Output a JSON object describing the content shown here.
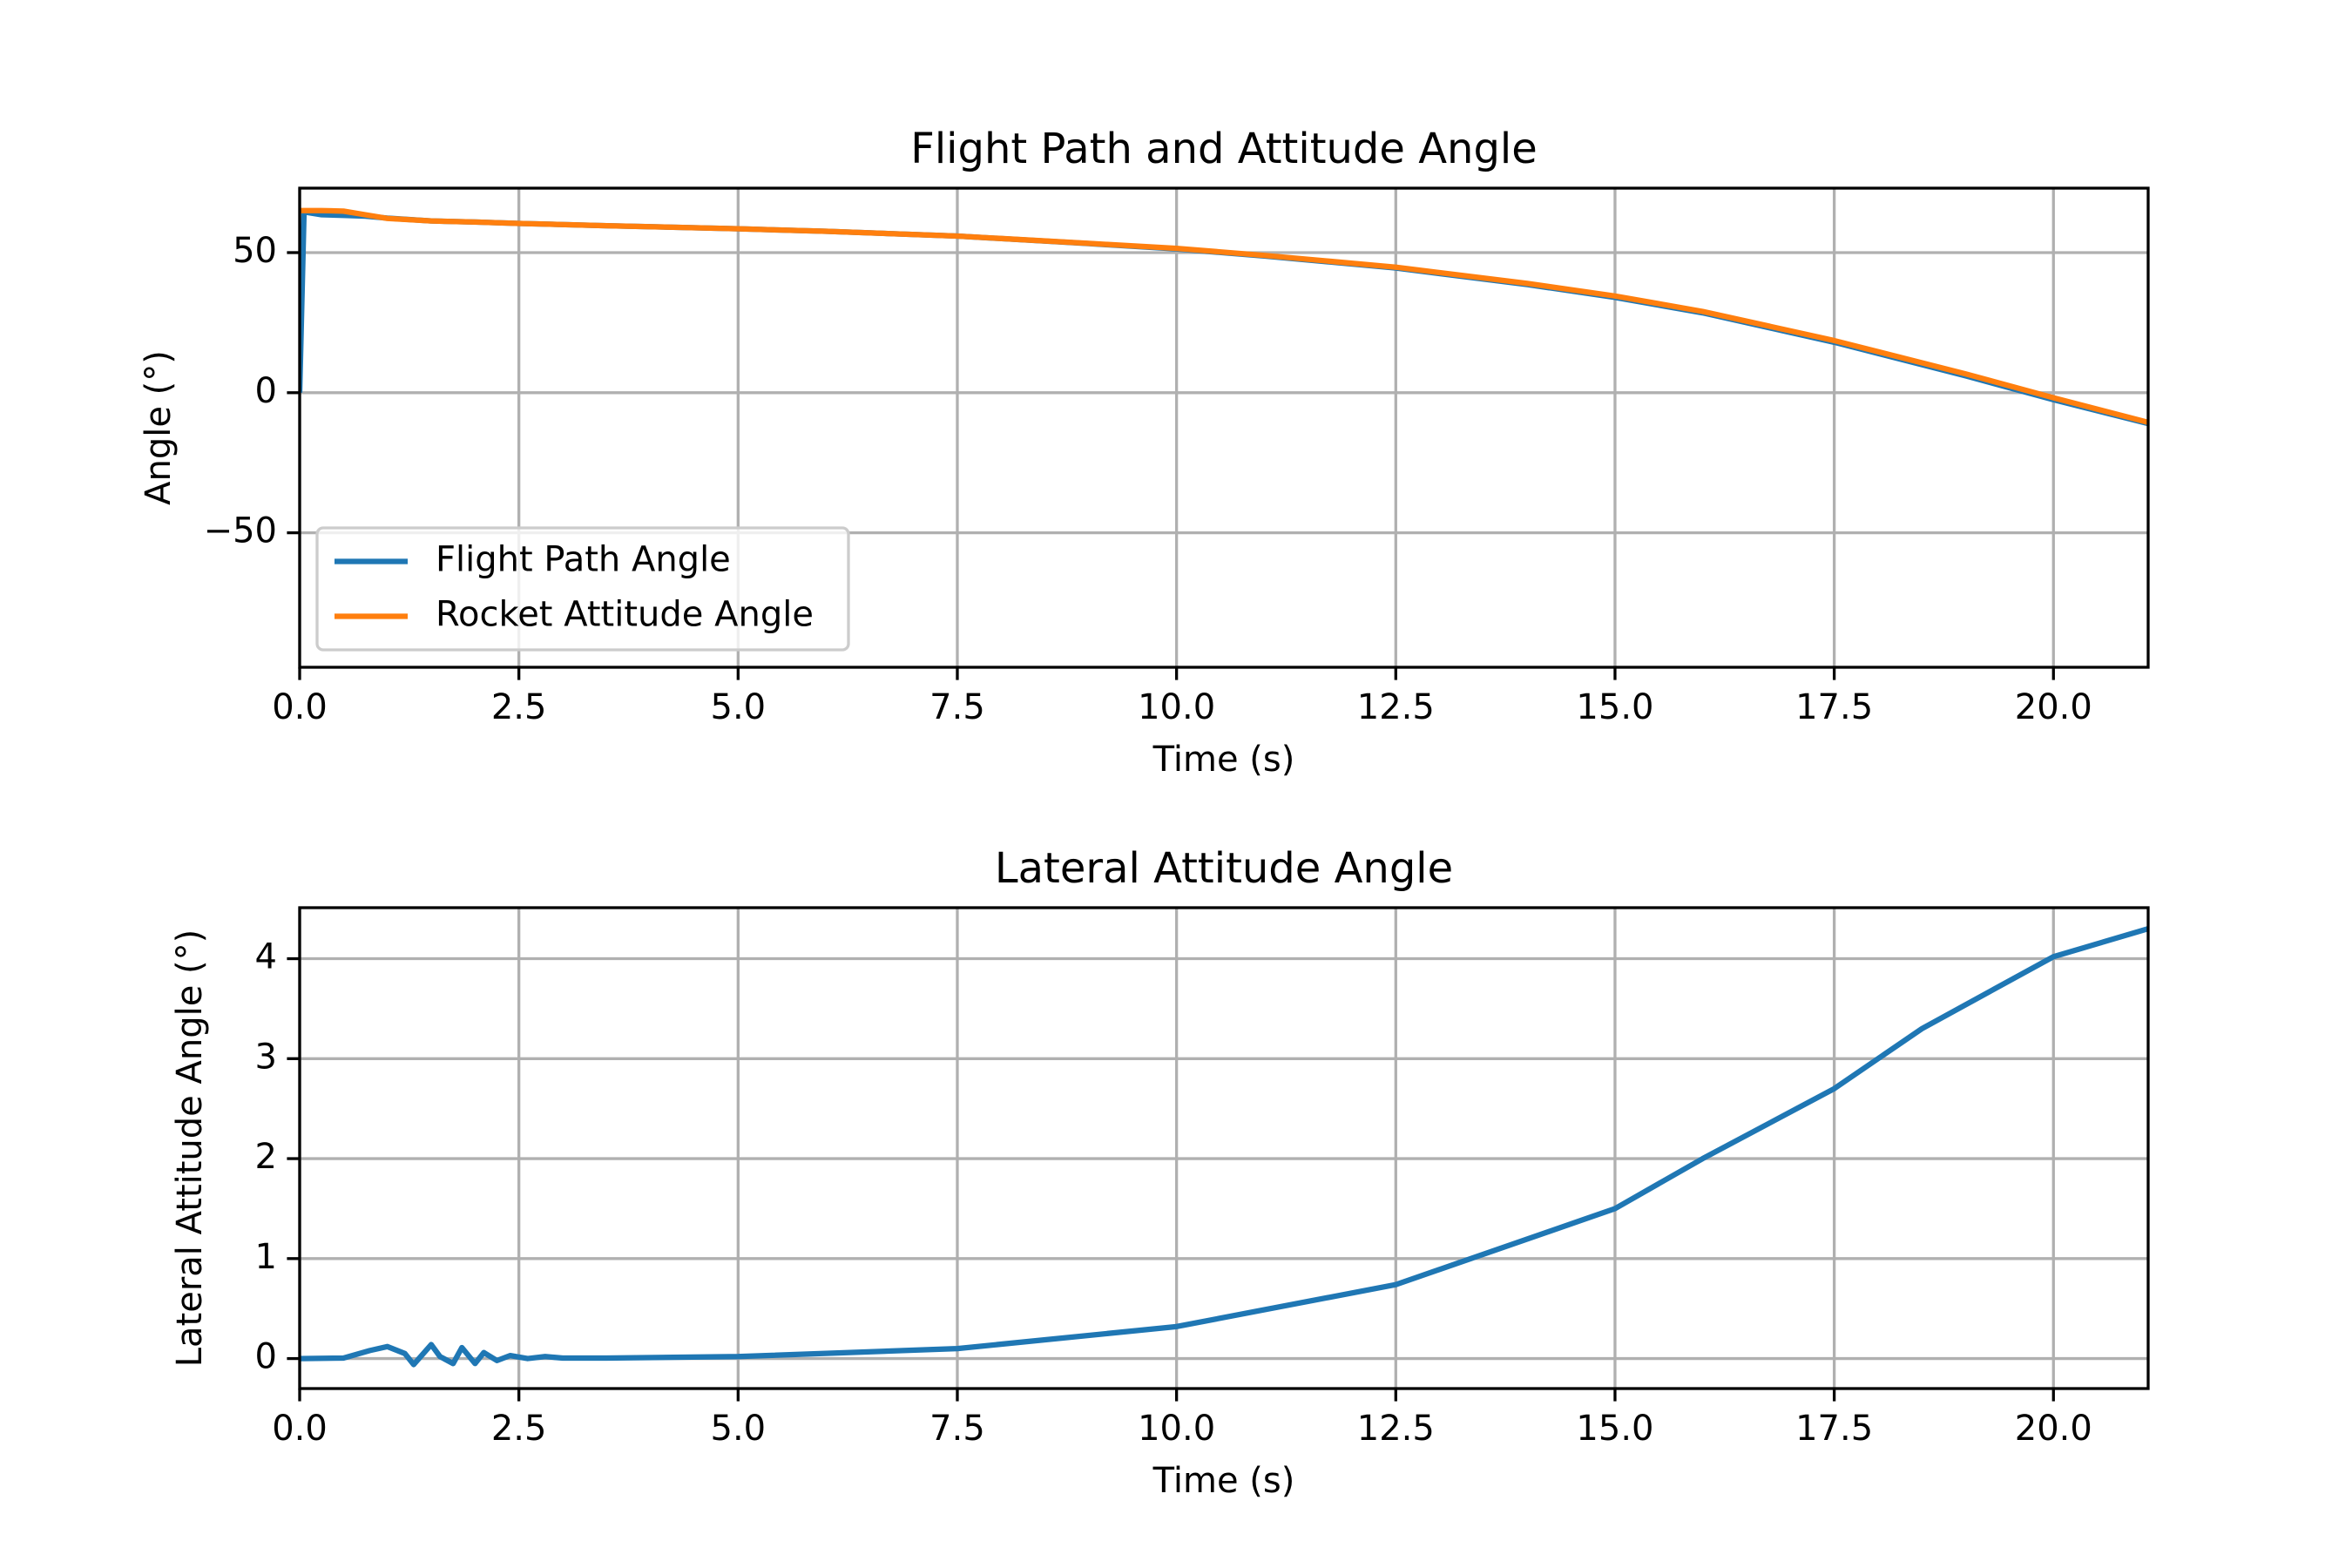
{
  "chart_data": [
    {
      "type": "line",
      "title": "Flight Path and Attitude Angle",
      "xlabel": "Time (s)",
      "ylabel": "Angle (°)",
      "x": [
        0,
        0.05,
        0.25,
        0.5,
        0.75,
        1,
        1.5,
        2,
        2.5,
        3.5,
        5,
        6,
        7.5,
        9,
        10,
        11,
        12.5,
        14,
        15,
        16,
        17.5,
        19,
        20,
        21.08
      ],
      "series": [
        {
          "name": "Flight Path Angle",
          "color": "#1f77b4",
          "values": [
            0,
            64.5,
            63.5,
            63.3,
            63,
            62.3,
            61.3,
            60.9,
            60.4,
            59.6,
            58.5,
            57.6,
            55.9,
            53.2,
            51.3,
            48.8,
            44.5,
            38.6,
            34,
            28.5,
            18,
            6,
            -2.5,
            -11
          ]
        },
        {
          "name": "Rocket Attitude Angle",
          "color": "#ff7f0e",
          "values": [
            65,
            65,
            65,
            64.8,
            63.5,
            62.2,
            61.3,
            60.9,
            60.4,
            59.6,
            58.5,
            57.6,
            55.9,
            53.3,
            51.5,
            49,
            44.8,
            39,
            34.5,
            29,
            18.6,
            6.7,
            -1.8,
            -10.6
          ]
        }
      ],
      "xlim": [
        0,
        21.08
      ],
      "ylim": [
        -98,
        73
      ],
      "xticks": [
        {
          "value": 0,
          "label": "0.0"
        },
        {
          "value": 2.5,
          "label": "2.5"
        },
        {
          "value": 5,
          "label": "5.0"
        },
        {
          "value": 7.5,
          "label": "7.5"
        },
        {
          "value": 10,
          "label": "10.0"
        },
        {
          "value": 12.5,
          "label": "12.5"
        },
        {
          "value": 15,
          "label": "15.0"
        },
        {
          "value": 17.5,
          "label": "17.5"
        },
        {
          "value": 20,
          "label": "20.0"
        }
      ],
      "yticks": [
        {
          "value": -50,
          "label": "−50"
        },
        0,
        50
      ],
      "grid": true,
      "legend": "lower left"
    },
    {
      "type": "line",
      "title": "Lateral Attitude Angle",
      "xlabel": "Time (s)",
      "ylabel": "Lateral Attitude Angle (°)",
      "x": [
        0,
        0.5,
        0.8,
        1,
        1.2,
        1.3,
        1.5,
        1.6,
        1.75,
        1.85,
        2,
        2.1,
        2.25,
        2.4,
        2.6,
        2.8,
        3,
        3.5,
        5,
        7.5,
        10,
        12.5,
        15,
        16,
        17.5,
        18.5,
        20,
        21.08
      ],
      "series": [
        {
          "color": "#1f77b4",
          "values": [
            0,
            0.005,
            0.08,
            0.12,
            0.05,
            -0.06,
            0.14,
            0.02,
            -0.05,
            0.11,
            -0.05,
            0.06,
            -0.02,
            0.03,
            0,
            0.02,
            0.005,
            0.005,
            0.02,
            0.1,
            0.32,
            0.74,
            1.5,
            2,
            2.7,
            3.3,
            4.02,
            4.3
          ]
        }
      ],
      "xlim": [
        0,
        21.08
      ],
      "ylim": [
        -0.3,
        4.51
      ],
      "xticks": [
        {
          "value": 0,
          "label": "0.0"
        },
        {
          "value": 2.5,
          "label": "2.5"
        },
        {
          "value": 5,
          "label": "5.0"
        },
        {
          "value": 7.5,
          "label": "7.5"
        },
        {
          "value": 10,
          "label": "10.0"
        },
        {
          "value": 12.5,
          "label": "12.5"
        },
        {
          "value": 15,
          "label": "15.0"
        },
        {
          "value": 17.5,
          "label": "17.5"
        },
        {
          "value": 20,
          "label": "20.0"
        }
      ],
      "yticks": [
        0,
        1,
        2,
        3,
        4
      ],
      "grid": true
    }
  ]
}
